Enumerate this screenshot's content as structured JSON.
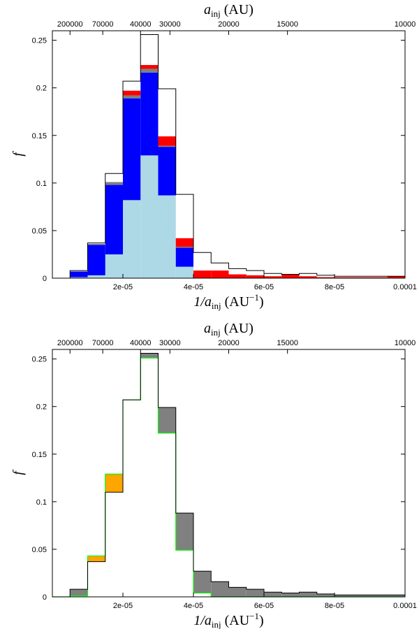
{
  "chart_data": [
    {
      "type": "histogram",
      "panel": "top",
      "ylabel": "f",
      "xlabel": {
        "main": "1/a",
        "sub": "inj",
        "units": "(AU",
        "sup": "−1",
        "close": ")"
      },
      "x2label": {
        "main": "a",
        "sub": "inj",
        "units": "(AU)"
      },
      "xlim": [
        0,
        0.0001
      ],
      "ylim": [
        0,
        0.26
      ],
      "xticks": [
        2e-05,
        4e-05,
        6e-05,
        8e-05,
        0.0001
      ],
      "xtick_labels": [
        "2e-05",
        "4e-05",
        "6e-05",
        "8e-05",
        "0.0001"
      ],
      "yticks": [
        0,
        0.05,
        0.1,
        0.15,
        0.2,
        0.25
      ],
      "ytick_labels": [
        "0",
        "0.05",
        "0.1",
        "0.15",
        "0.2",
        "0.25"
      ],
      "x2ticks": [
        200000,
        70000,
        40000,
        30000,
        20000,
        15000,
        10000
      ],
      "x2tick_labels": [
        "200000",
        "70000",
        "40000",
        "30000",
        "20000",
        "15000",
        "10000"
      ],
      "bin_edges": [
        0.0,
        5e-06,
        1e-05,
        1.5e-05,
        2e-05,
        2.5e-05,
        3e-05,
        3.5e-05,
        4e-05,
        4.5e-05,
        5e-05,
        5.5e-05,
        6e-05,
        6.5e-05,
        7e-05,
        7.5e-05,
        8e-05,
        8.5e-05,
        9e-05,
        9.5e-05,
        0.0001
      ],
      "stacked_series": [
        {
          "color": "#add8e6",
          "values": [
            0,
            0.001,
            0.003,
            0.025,
            0.082,
            0.129,
            0.087,
            0.012,
            0,
            0,
            0,
            0,
            0,
            0,
            0,
            0,
            0,
            0,
            0,
            0
          ]
        },
        {
          "color": "#0000ff",
          "values": [
            0,
            0.006,
            0.032,
            0.073,
            0.107,
            0.087,
            0.051,
            0.02,
            0,
            0,
            0,
            0,
            0,
            0,
            0,
            0,
            0,
            0,
            0,
            0
          ]
        },
        {
          "color": "#808080",
          "values": [
            0,
            0,
            0.001,
            0.003,
            0.003,
            0.004,
            0.001,
            0.001,
            0,
            0,
            0,
            0,
            0,
            0,
            0,
            0,
            0,
            0,
            0,
            0
          ]
        },
        {
          "color": "#ff0000",
          "values": [
            0,
            0,
            0,
            0,
            0.005,
            0.004,
            0.01,
            0.009,
            0.008,
            0.008,
            0.004,
            0.003,
            0.002,
            0.004,
            0.002,
            0.001,
            0.001,
            0.001,
            0.001,
            0.002
          ]
        }
      ],
      "outline_series": {
        "color": "#000000",
        "values": [
          0,
          0.008,
          0.037,
          0.11,
          0.207,
          0.256,
          0.199,
          0.088,
          0.027,
          0.016,
          0.01,
          0.008,
          0.005,
          0.004,
          0.005,
          0.003,
          0.002,
          0.002,
          0.002,
          0.002
        ]
      }
    },
    {
      "type": "histogram",
      "panel": "bottom",
      "ylabel": "f",
      "xlabel": {
        "main": "1/a",
        "sub": "inj",
        "units": "(AU",
        "sup": "−1",
        "close": ")"
      },
      "x2label": {
        "main": "a",
        "sub": "inj",
        "units": "(AU)"
      },
      "xlim": [
        0,
        0.0001
      ],
      "ylim": [
        0,
        0.26
      ],
      "xticks": [
        2e-05,
        4e-05,
        6e-05,
        8e-05,
        0.0001
      ],
      "xtick_labels": [
        "2e-05",
        "4e-05",
        "6e-05",
        "8e-05",
        "0.0001"
      ],
      "yticks": [
        0,
        0.05,
        0.1,
        0.15,
        0.2,
        0.25
      ],
      "ytick_labels": [
        "0",
        "0.05",
        "0.1",
        "0.15",
        "0.2",
        "0.25"
      ],
      "x2ticks": [
        200000,
        70000,
        40000,
        30000,
        20000,
        15000,
        10000
      ],
      "x2tick_labels": [
        "200000",
        "70000",
        "40000",
        "30000",
        "20000",
        "15000",
        "10000"
      ],
      "bin_edges": [
        0.0,
        5e-06,
        1e-05,
        1.5e-05,
        2e-05,
        2.5e-05,
        3e-05,
        3.5e-05,
        4e-05,
        4.5e-05,
        5e-05,
        5.5e-05,
        6e-05,
        6.5e-05,
        7e-05,
        7.5e-05,
        8e-05,
        8.5e-05,
        9e-05,
        9.5e-05,
        0.0001
      ],
      "series_a": {
        "edge_color": "#000000",
        "values": [
          0,
          0.008,
          0.037,
          0.11,
          0.207,
          0.256,
          0.199,
          0.088,
          0.027,
          0.016,
          0.01,
          0.008,
          0.005,
          0.004,
          0.005,
          0.003,
          0.002,
          0.002,
          0.002,
          0.002
        ]
      },
      "series_b": {
        "edge_color": "#00ff00",
        "values": [
          0,
          0.001,
          0.043,
          0.129,
          0.207,
          0.251,
          0.172,
          0.049,
          0.004,
          0,
          0,
          0,
          0,
          0,
          0,
          0,
          0,
          0,
          0,
          0
        ]
      },
      "fill_a_above_b_color": "#808080",
      "fill_b_above_a_color": "#ffa500"
    }
  ]
}
